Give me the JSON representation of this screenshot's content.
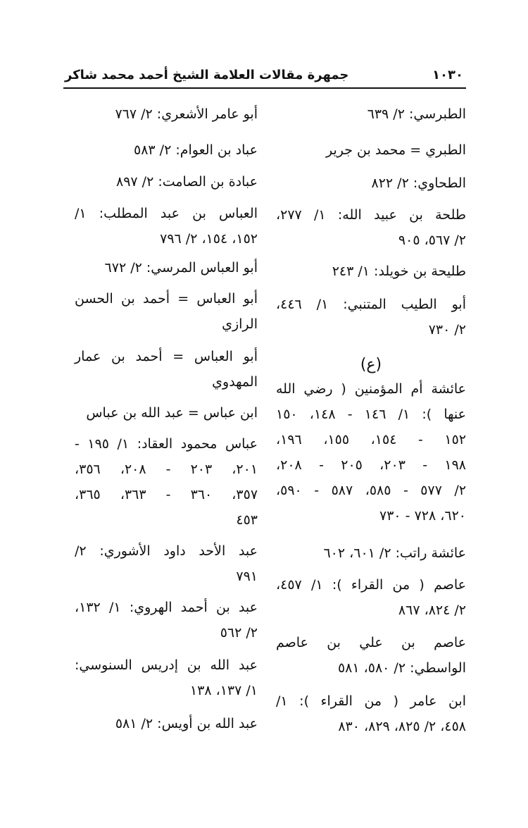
{
  "header": {
    "page_number": "١٠٣٠",
    "title": "جمهرة مقالات العلامة الشيخ أحمد محمد شاكر"
  },
  "right_column": [
    {
      "lines": [
        "الطبرسي: ٢/ ٦٣٩"
      ]
    },
    {
      "lines": [
        "الطبري = محمد بن جرير"
      ]
    },
    {
      "lines": [
        "الطحاوي: ٢/ ٨٢٢"
      ]
    },
    {
      "lines": [
        "طلحة بن عبيد الله: ١/ ٢٧٧،",
        "٢/ ٥٦٧، ٩٠٥"
      ]
    },
    {
      "lines": [
        "طليحة بن خويلد: ١/ ٢٤٣"
      ]
    },
    {
      "lines": [
        "أبو الطيب المتنبي: ١/ ٤٤٦،",
        "٢/ ٧٣٠"
      ]
    },
    {
      "section_letter": "(ع)"
    },
    {
      "lines": [
        "عائشة أم المؤمنين ( رضي الله",
        "عنها ): ١/ ١٤٦ - ١٤٨، ١٥٠",
        "١٥٢ - ١٥٤، ١٥٥، ١٩٦،",
        "١٩٨ - ٢٠٣، ٢٠٥ - ٢٠٨،",
        "٢/ ٥٧٧ - ٥٨٥، ٥٨٧ - ٥٩٠،",
        "٦٢٠، ٧٢٨ - ٧٣٠"
      ]
    },
    {
      "lines": [
        "عائشة راتب: ٢/ ٦٠١، ٦٠٢"
      ]
    },
    {
      "lines": [
        "عاصم ( من القراء ): ١/ ٤٥٧،",
        "٢/ ٨٢٤، ٨٦٧"
      ]
    },
    {
      "lines": [
        "عاصم بن علي بن عاصم",
        "الواسطي: ٢/ ٥٨٠، ٥٨١"
      ]
    },
    {
      "lines": [
        "ابن عامر ( من القراء ): ١/",
        "٤٥٨، ٢/ ٨٢٥، ٨٢٩، ٨٣٠"
      ]
    }
  ],
  "left_column": [
    {
      "lines": [
        "أبو عامر الأشعري: ٢/ ٧٦٧"
      ]
    },
    {
      "lines": [
        "عباد بن العوام: ٢/ ٥٨٣"
      ]
    },
    {
      "lines": [
        "عبادة بن الصامت: ٢/ ٨٩٧"
      ]
    },
    {
      "lines": [
        "العباس بن عبد المطلب: ١/",
        "١٥٢، ١٥٤، ٢/ ٧٩٦"
      ]
    },
    {
      "lines": [
        "أبو العباس المرسي: ٢/ ٦٧٢"
      ]
    },
    {
      "lines": [
        "أبو العباس = أحمد بن الحسن",
        "الرازي"
      ]
    },
    {
      "lines": [
        "أبو العباس = أحمد بن عمار",
        "المهدوي"
      ]
    },
    {
      "lines": [
        "ابن عباس = عبد الله بن عباس"
      ]
    },
    {
      "lines": [
        "عباس محمود العقاد: ١/ ١٩٥ -",
        "٢٠١، ٢٠٣ - ٢٠٨، ٣٥٦،",
        "٣٥٧، ٣٦٠ - ٣٦٣، ٣٦٥،",
        "٤٥٣"
      ]
    },
    {
      "lines": [
        "عبد الأحد داود الأشوري: ٢/",
        "٧٩١"
      ]
    },
    {
      "lines": [
        "عبد بن أحمد الهروي: ١/ ١٣٢،",
        "٢/ ٥٦٢"
      ]
    },
    {
      "lines": [
        "عبد الله بن إدريس السنوسي:",
        "١/ ١٣٧، ١٣٨"
      ]
    },
    {
      "lines": [
        "عبد الله بن أويس: ٢/ ٥٨١"
      ]
    }
  ]
}
